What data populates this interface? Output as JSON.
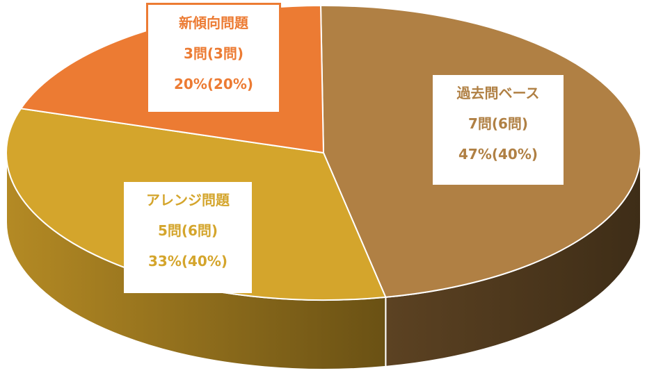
{
  "chart_data": {
    "type": "pie",
    "three_d": true,
    "legend": "none",
    "slices": [
      {
        "label": "過去問ベース",
        "count": "7問(6問)",
        "percent": "47%(40%)",
        "value": 47,
        "color": "#b08044",
        "side_color": "#5c4120",
        "text_color": "#b08044"
      },
      {
        "label": "アレンジ問題",
        "count": "5問(6問)",
        "percent": "33%(40%)",
        "value": 33,
        "color": "#d4a52c",
        "side_color": "#6e5515",
        "text_color": "#d4a52c"
      },
      {
        "label": "新傾向問題",
        "count": "3問(3問)",
        "percent": "20%(20%)",
        "value": 20,
        "color": "#ec7b33",
        "side_color": "#8a4216",
        "text_color": "#ec7b33"
      }
    ]
  }
}
